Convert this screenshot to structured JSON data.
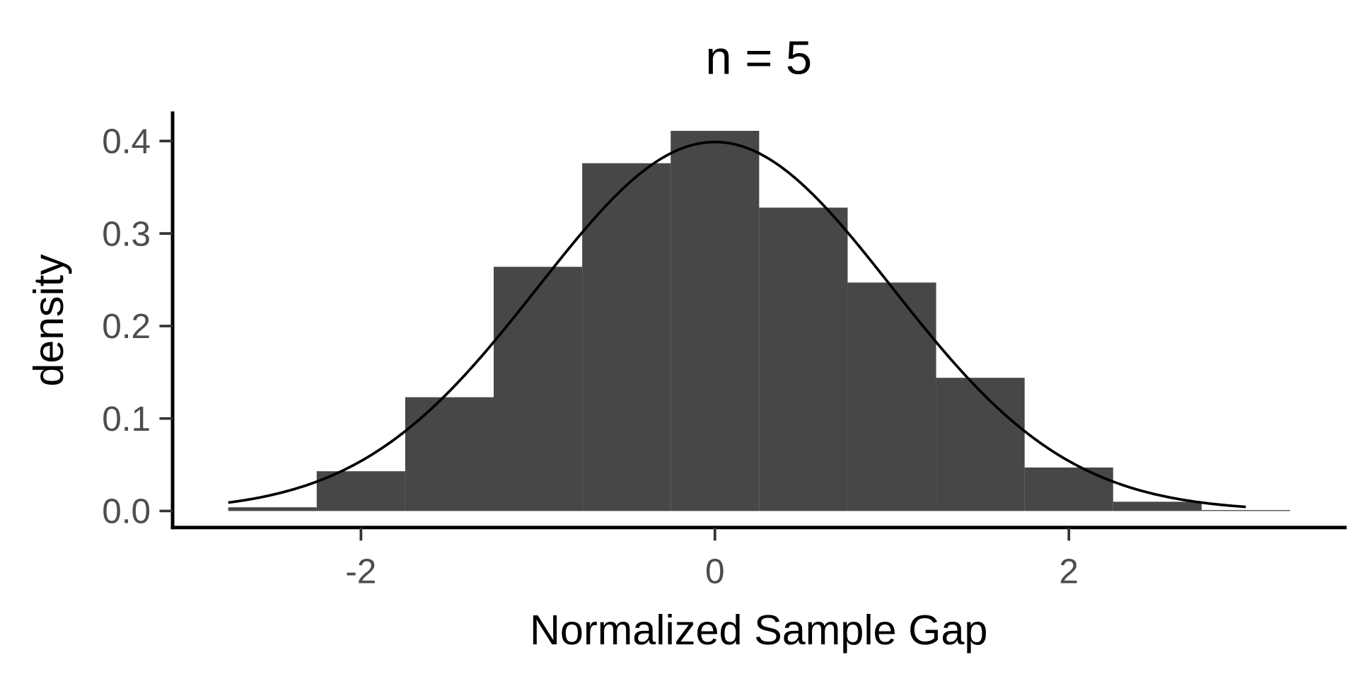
{
  "chart_data": {
    "type": "bar",
    "subtype": "histogram with normal density overlay",
    "title": "n = 5",
    "xlabel": "Normalized Sample Gap",
    "ylabel": "density",
    "xlim": [
      -2.9,
      3.6
    ],
    "ylim": [
      -0.03,
      0.43
    ],
    "x_ticks": [
      -2,
      0,
      2
    ],
    "x_tick_labels": [
      "-2",
      "0",
      "2"
    ],
    "y_ticks": [
      0,
      0.1,
      0.2,
      0.3,
      0.4
    ],
    "y_tick_labels": [
      "0.0",
      "0.1",
      "0.2",
      "0.3",
      "0.4"
    ],
    "grid": false,
    "bin_width": 0.5,
    "bin_edges": [
      -2.75,
      -2.25,
      -1.75,
      -1.25,
      -0.75,
      -0.25,
      0.25,
      0.75,
      1.25,
      1.75,
      2.25,
      2.75,
      3.25
    ],
    "values": [
      0.004,
      0.043,
      0.123,
      0.264,
      0.376,
      0.411,
      0.328,
      0.247,
      0.144,
      0.047,
      0.01,
      0.001
    ],
    "bar_color": "#474747",
    "curve": {
      "name": "standard normal density",
      "mean": 0,
      "sd": 1,
      "x_range": [
        -2.75,
        3.0
      ],
      "color": "#000000"
    }
  }
}
